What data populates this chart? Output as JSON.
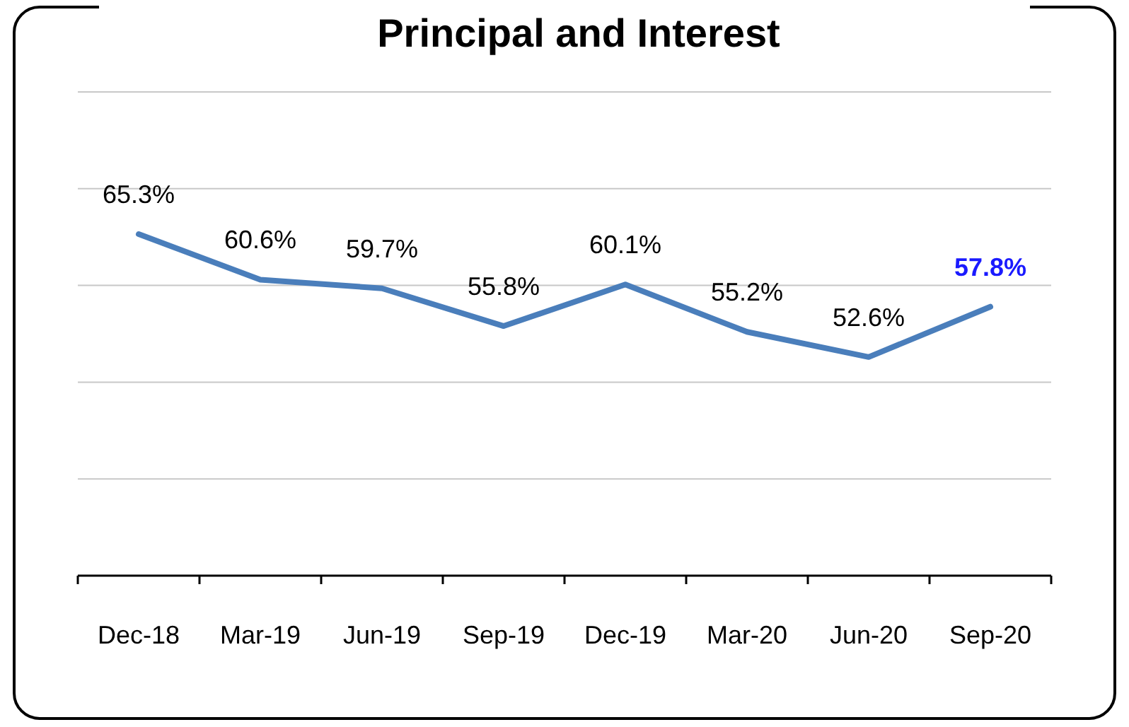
{
  "chart_data": {
    "type": "line",
    "title": "Principal and Interest",
    "categories": [
      "Dec-18",
      "Mar-19",
      "Jun-19",
      "Sep-19",
      "Dec-19",
      "Mar-20",
      "Jun-20",
      "Sep-20"
    ],
    "series": [
      {
        "color": "#4a7ebb",
        "values": [
          65.3,
          60.6,
          59.7,
          55.8,
          60.1,
          55.2,
          52.6,
          57.8
        ],
        "value_labels": [
          "65.3%",
          "60.6%",
          "59.7%",
          "55.8%",
          "60.1%",
          "55.2%",
          "52.6%",
          "57.8%"
        ]
      }
    ],
    "ylim": [
      30,
      80
    ],
    "yticks": [
      {
        "value": 30,
        "label": null
      },
      {
        "value": 40,
        "label": null
      },
      {
        "value": 50,
        "label": null
      },
      {
        "value": 60,
        "label": null
      },
      {
        "value": 70,
        "label": null
      },
      {
        "value": 80,
        "label": null
      }
    ],
    "tick_labels": "x",
    "grid": "y",
    "marker": "none",
    "line_style": "solid"
  }
}
